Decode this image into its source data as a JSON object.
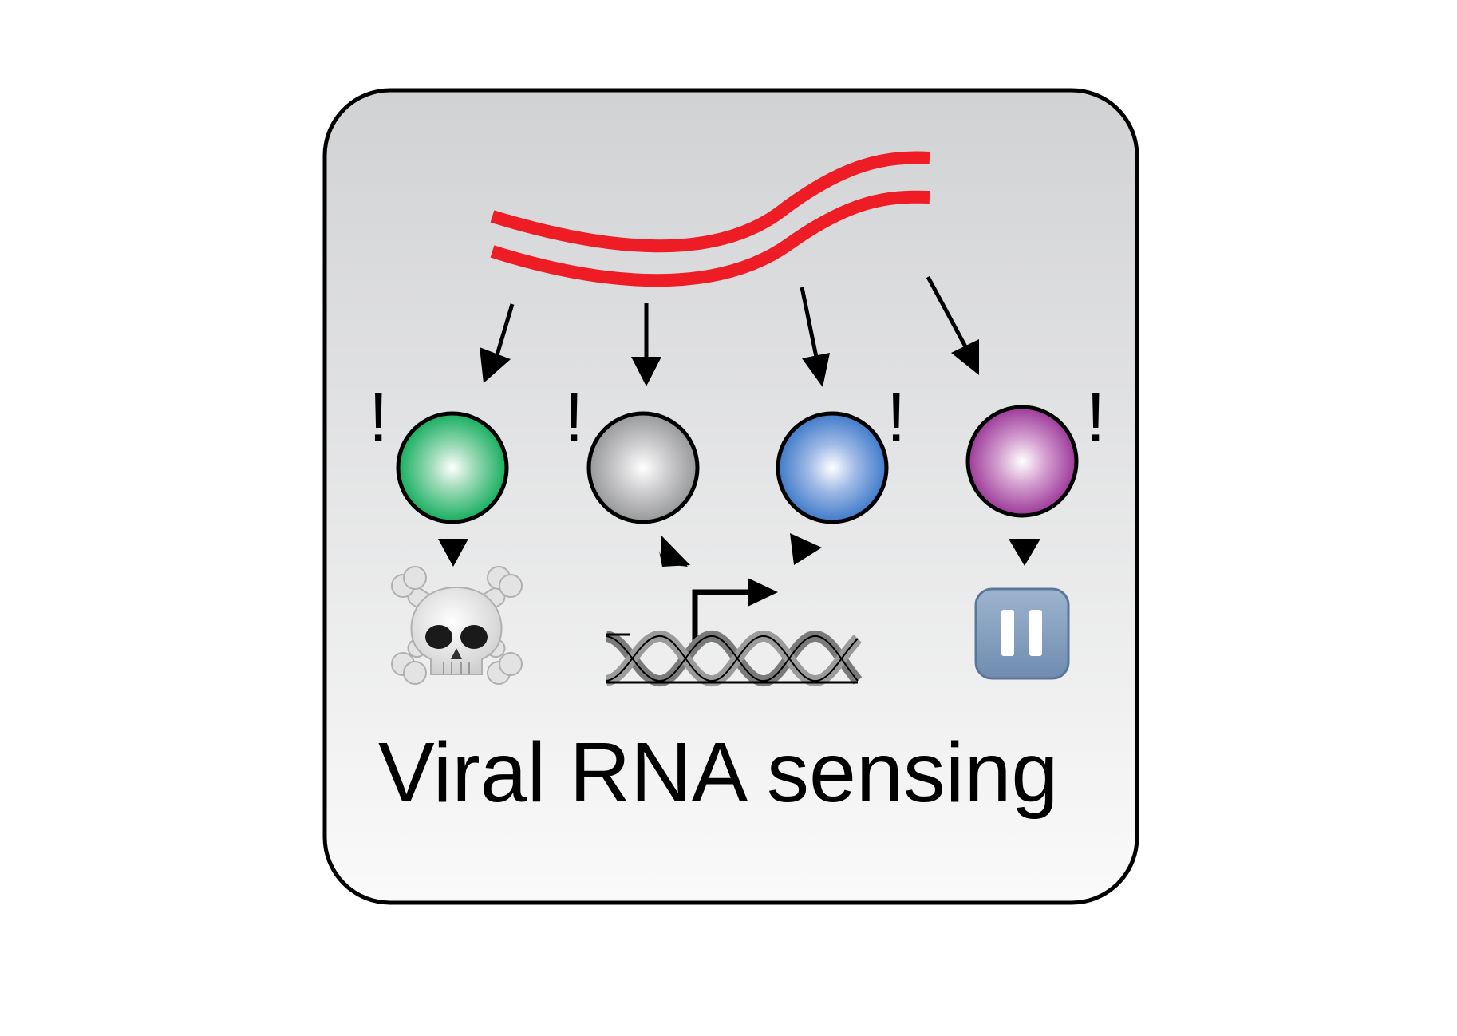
{
  "caption": "Viral RNA sensing",
  "exclamation": "!",
  "colors": {
    "rna_strand": "#ee1c25",
    "panel_top": "#d2d3d5",
    "panel_bottom": "#fafafa",
    "sensor_green": "#00a651",
    "sensor_gray": "#9a9a9c",
    "sensor_blue": "#2d6fc4",
    "sensor_purple": "#92278f",
    "pause_button": "#7f9bbc",
    "dna": "#7a7a7a"
  },
  "icons": {
    "rna": "double-stranded-rna-icon",
    "death": "skull-and-crossbones-icon",
    "transcription": "dna-promoter-icon",
    "pause": "pause-button-icon"
  }
}
